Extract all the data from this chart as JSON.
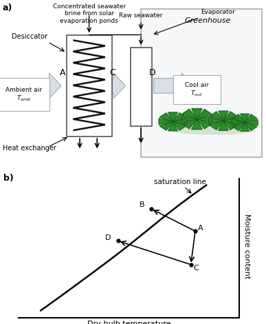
{
  "bg_color": "#ffffff",
  "fig_width": 3.87,
  "fig_height": 4.7,
  "dpi": 100,
  "panel_a_label": "a)",
  "panel_b_label": "b)",
  "greenhouse_label": "Greenhouse",
  "desiccator_label": "Desiccator",
  "heat_exchanger_label": "Heat exchanger",
  "ambient_air_label": "Ambient air\n$T_{amb}$",
  "cool_air_label": "Cool air\n$T_{out}$",
  "raw_seawater_label": "Raw seawater",
  "evaporator_label": "Evaporator",
  "brine_label": "Concentrated seawater\nbrine from solar\nevaporation ponds",
  "point_A": "A",
  "point_B": "B",
  "point_C": "C",
  "point_D": "D",
  "saturation_line_label": "saturation line",
  "xlabel": "Dry-bulb temperature",
  "ylabel": "Moisture content",
  "line_color": "#000000",
  "arrow_fc": "#d8dfe6",
  "arrow_ec": "#a0aab2",
  "green_color": "#2e8b2e",
  "dark_green": "#1a5c1a",
  "gray_box": "#e8ecf0"
}
